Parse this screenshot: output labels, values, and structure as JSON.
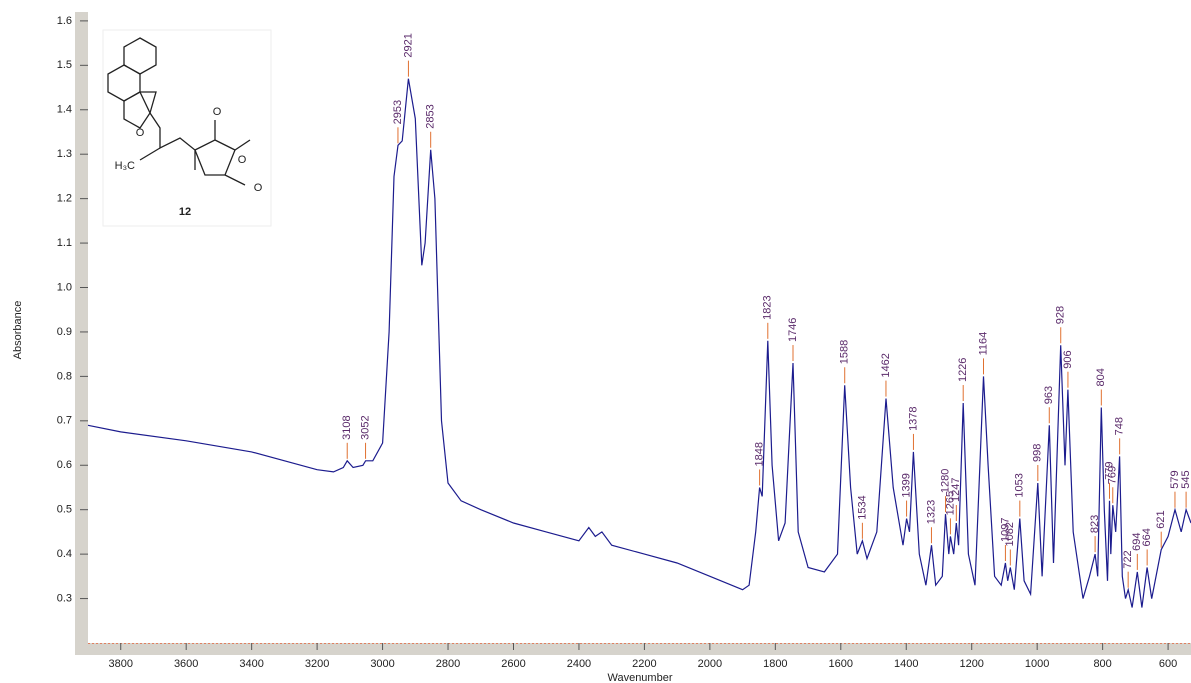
{
  "chart_data": {
    "type": "line",
    "x_label": "Wavenumber",
    "y_label": "Absorbance",
    "xlim": [
      3900,
      530
    ],
    "ylim": [
      0.2,
      1.62
    ],
    "xticks": [
      3800,
      3600,
      3400,
      3200,
      3000,
      2800,
      2600,
      2400,
      2200,
      2000,
      1800,
      1600,
      1400,
      1200,
      1000,
      800,
      600
    ],
    "yticks": [
      0.3,
      0.4,
      0.5,
      0.6,
      0.7,
      0.8,
      0.9,
      {
        "value": 1,
        "label": "1.0"
      },
      1.1,
      1.2,
      1.3,
      1.4,
      1.5,
      1.6
    ],
    "color": "#1c1c8e",
    "peak_color": "#e07030",
    "x": [
      3900,
      3800,
      3600,
      3400,
      3200,
      3150,
      3120,
      3108,
      3090,
      3060,
      3052,
      3030,
      3000,
      2980,
      2965,
      2953,
      2940,
      2921,
      2900,
      2880,
      2870,
      2853,
      2840,
      2820,
      2800,
      2760,
      2700,
      2600,
      2500,
      2400,
      2370,
      2350,
      2330,
      2300,
      2200,
      2100,
      2000,
      1900,
      1880,
      1860,
      1848,
      1840,
      1823,
      1810,
      1790,
      1770,
      1746,
      1730,
      1700,
      1650,
      1610,
      1588,
      1570,
      1550,
      1534,
      1520,
      1490,
      1462,
      1440,
      1410,
      1399,
      1390,
      1378,
      1360,
      1340,
      1323,
      1310,
      1290,
      1280,
      1270,
      1265,
      1255,
      1247,
      1240,
      1226,
      1210,
      1190,
      1164,
      1150,
      1130,
      1110,
      1097,
      1090,
      1082,
      1070,
      1053,
      1040,
      1020,
      998,
      985,
      963,
      950,
      928,
      915,
      906,
      890,
      860,
      840,
      823,
      815,
      804,
      795,
      785,
      779,
      775,
      769,
      760,
      748,
      740,
      730,
      722,
      710,
      694,
      680,
      664,
      650,
      621,
      600,
      579,
      560,
      545,
      530
    ],
    "values": [
      0.69,
      0.675,
      0.655,
      0.63,
      0.59,
      0.585,
      0.595,
      0.61,
      0.595,
      0.6,
      0.61,
      0.61,
      0.65,
      0.9,
      1.25,
      1.32,
      1.33,
      1.47,
      1.38,
      1.05,
      1.1,
      1.31,
      1.2,
      0.7,
      0.56,
      0.52,
      0.5,
      0.47,
      0.45,
      0.43,
      0.46,
      0.44,
      0.45,
      0.42,
      0.4,
      0.38,
      0.35,
      0.32,
      0.33,
      0.45,
      0.55,
      0.53,
      0.88,
      0.6,
      0.43,
      0.47,
      0.83,
      0.45,
      0.37,
      0.36,
      0.4,
      0.78,
      0.55,
      0.4,
      0.43,
      0.39,
      0.45,
      0.75,
      0.55,
      0.42,
      0.48,
      0.45,
      0.63,
      0.4,
      0.33,
      0.42,
      0.33,
      0.35,
      0.49,
      0.4,
      0.44,
      0.4,
      0.47,
      0.42,
      0.74,
      0.4,
      0.33,
      0.8,
      0.6,
      0.35,
      0.33,
      0.38,
      0.34,
      0.37,
      0.32,
      0.48,
      0.34,
      0.31,
      0.56,
      0.35,
      0.69,
      0.38,
      0.87,
      0.6,
      0.77,
      0.45,
      0.3,
      0.35,
      0.4,
      0.35,
      0.73,
      0.5,
      0.34,
      0.52,
      0.4,
      0.51,
      0.45,
      0.62,
      0.35,
      0.3,
      0.32,
      0.28,
      0.36,
      0.28,
      0.37,
      0.3,
      0.41,
      0.44,
      0.5,
      0.45,
      0.5,
      0.47
    ],
    "peaks": [
      3108,
      3052,
      2953,
      2921,
      2853,
      1848,
      1823,
      1746,
      1588,
      1534,
      1462,
      1399,
      1378,
      1323,
      1280,
      1265,
      1247,
      1226,
      1164,
      1097,
      1082,
      1053,
      998,
      963,
      928,
      906,
      823,
      804,
      779,
      769,
      748,
      722,
      694,
      664,
      621,
      579,
      545
    ]
  },
  "inset": {
    "compound": "12",
    "atoms": [
      "O",
      "O",
      "O",
      "O"
    ],
    "methyl": "H₃C"
  }
}
